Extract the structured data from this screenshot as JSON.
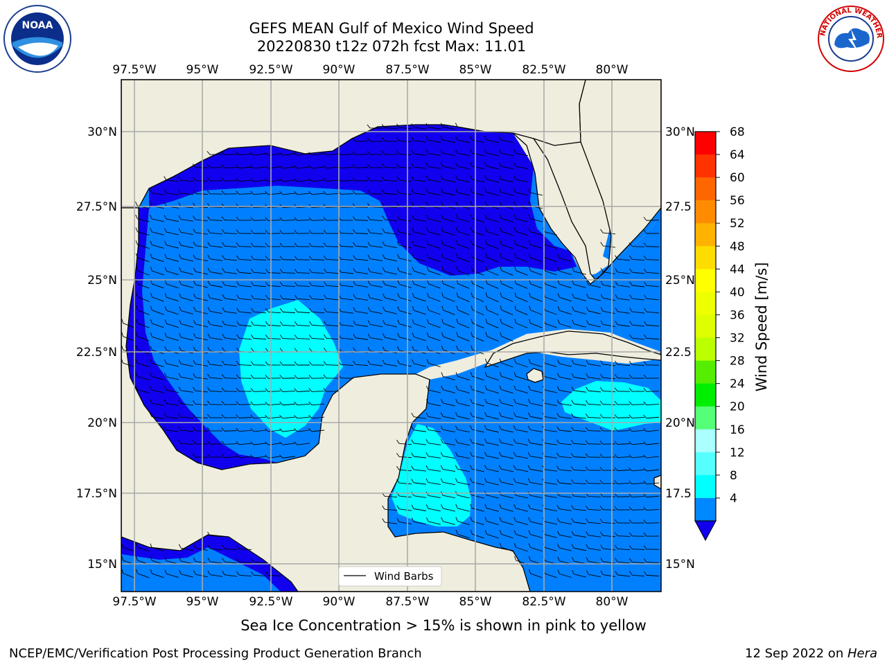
{
  "title_line1": "GEFS MEAN Gulf of Mexico Wind Speed",
  "title_line2": "20220830 t12z 072h fcst   Max: 11.01",
  "lon_labels": [
    "97.5°W",
    "95°W",
    "92.5°W",
    "90°W",
    "87.5°W",
    "85°W",
    "82.5°W",
    "80°W"
  ],
  "lat_labels": [
    "30°N",
    "27.5°N",
    "25°N",
    "22.5°N",
    "20°N",
    "17.5°N",
    "15°N"
  ],
  "lat_labels_right": [
    "30°N",
    "27.5",
    "25°N",
    "22.5",
    "20°N",
    "17.5",
    "15°N"
  ],
  "legend_label": "Wind Barbs",
  "colorbar": {
    "label": "Wind Speed [m/s]",
    "ticks": [
      "68",
      "64",
      "60",
      "56",
      "52",
      "48",
      "44",
      "40",
      "36",
      "32",
      "28",
      "24",
      "20",
      "16",
      "12",
      "8",
      "4"
    ],
    "colors": [
      "#ff0000",
      "#ff3300",
      "#ff6600",
      "#ff8c00",
      "#ffb300",
      "#ffdd00",
      "#ffff00",
      "#eeff00",
      "#ddff00",
      "#bbff00",
      "#55ee00",
      "#00ee00",
      "#55ff77",
      "#aaffff",
      "#55ffff",
      "#00ffff",
      "#0088ff"
    ],
    "extend_color": "#1100ee"
  },
  "wind_colors": {
    "dark": "#1100ee",
    "medium": "#0080ff",
    "cyan": "#00ffff"
  },
  "land_color": "#efeddd",
  "caption": "Sea Ice Concentration > 15% is shown in pink to yellow",
  "footer_left": "NCEP/EMC/Verification Post Processing Product Generation Branch",
  "footer_date": "12 Sep 2022 on ",
  "footer_machine": "Hera",
  "noaa_logo_text": "NOAA",
  "nws_logo_text": "NATIONAL WEATHER SERVICE"
}
